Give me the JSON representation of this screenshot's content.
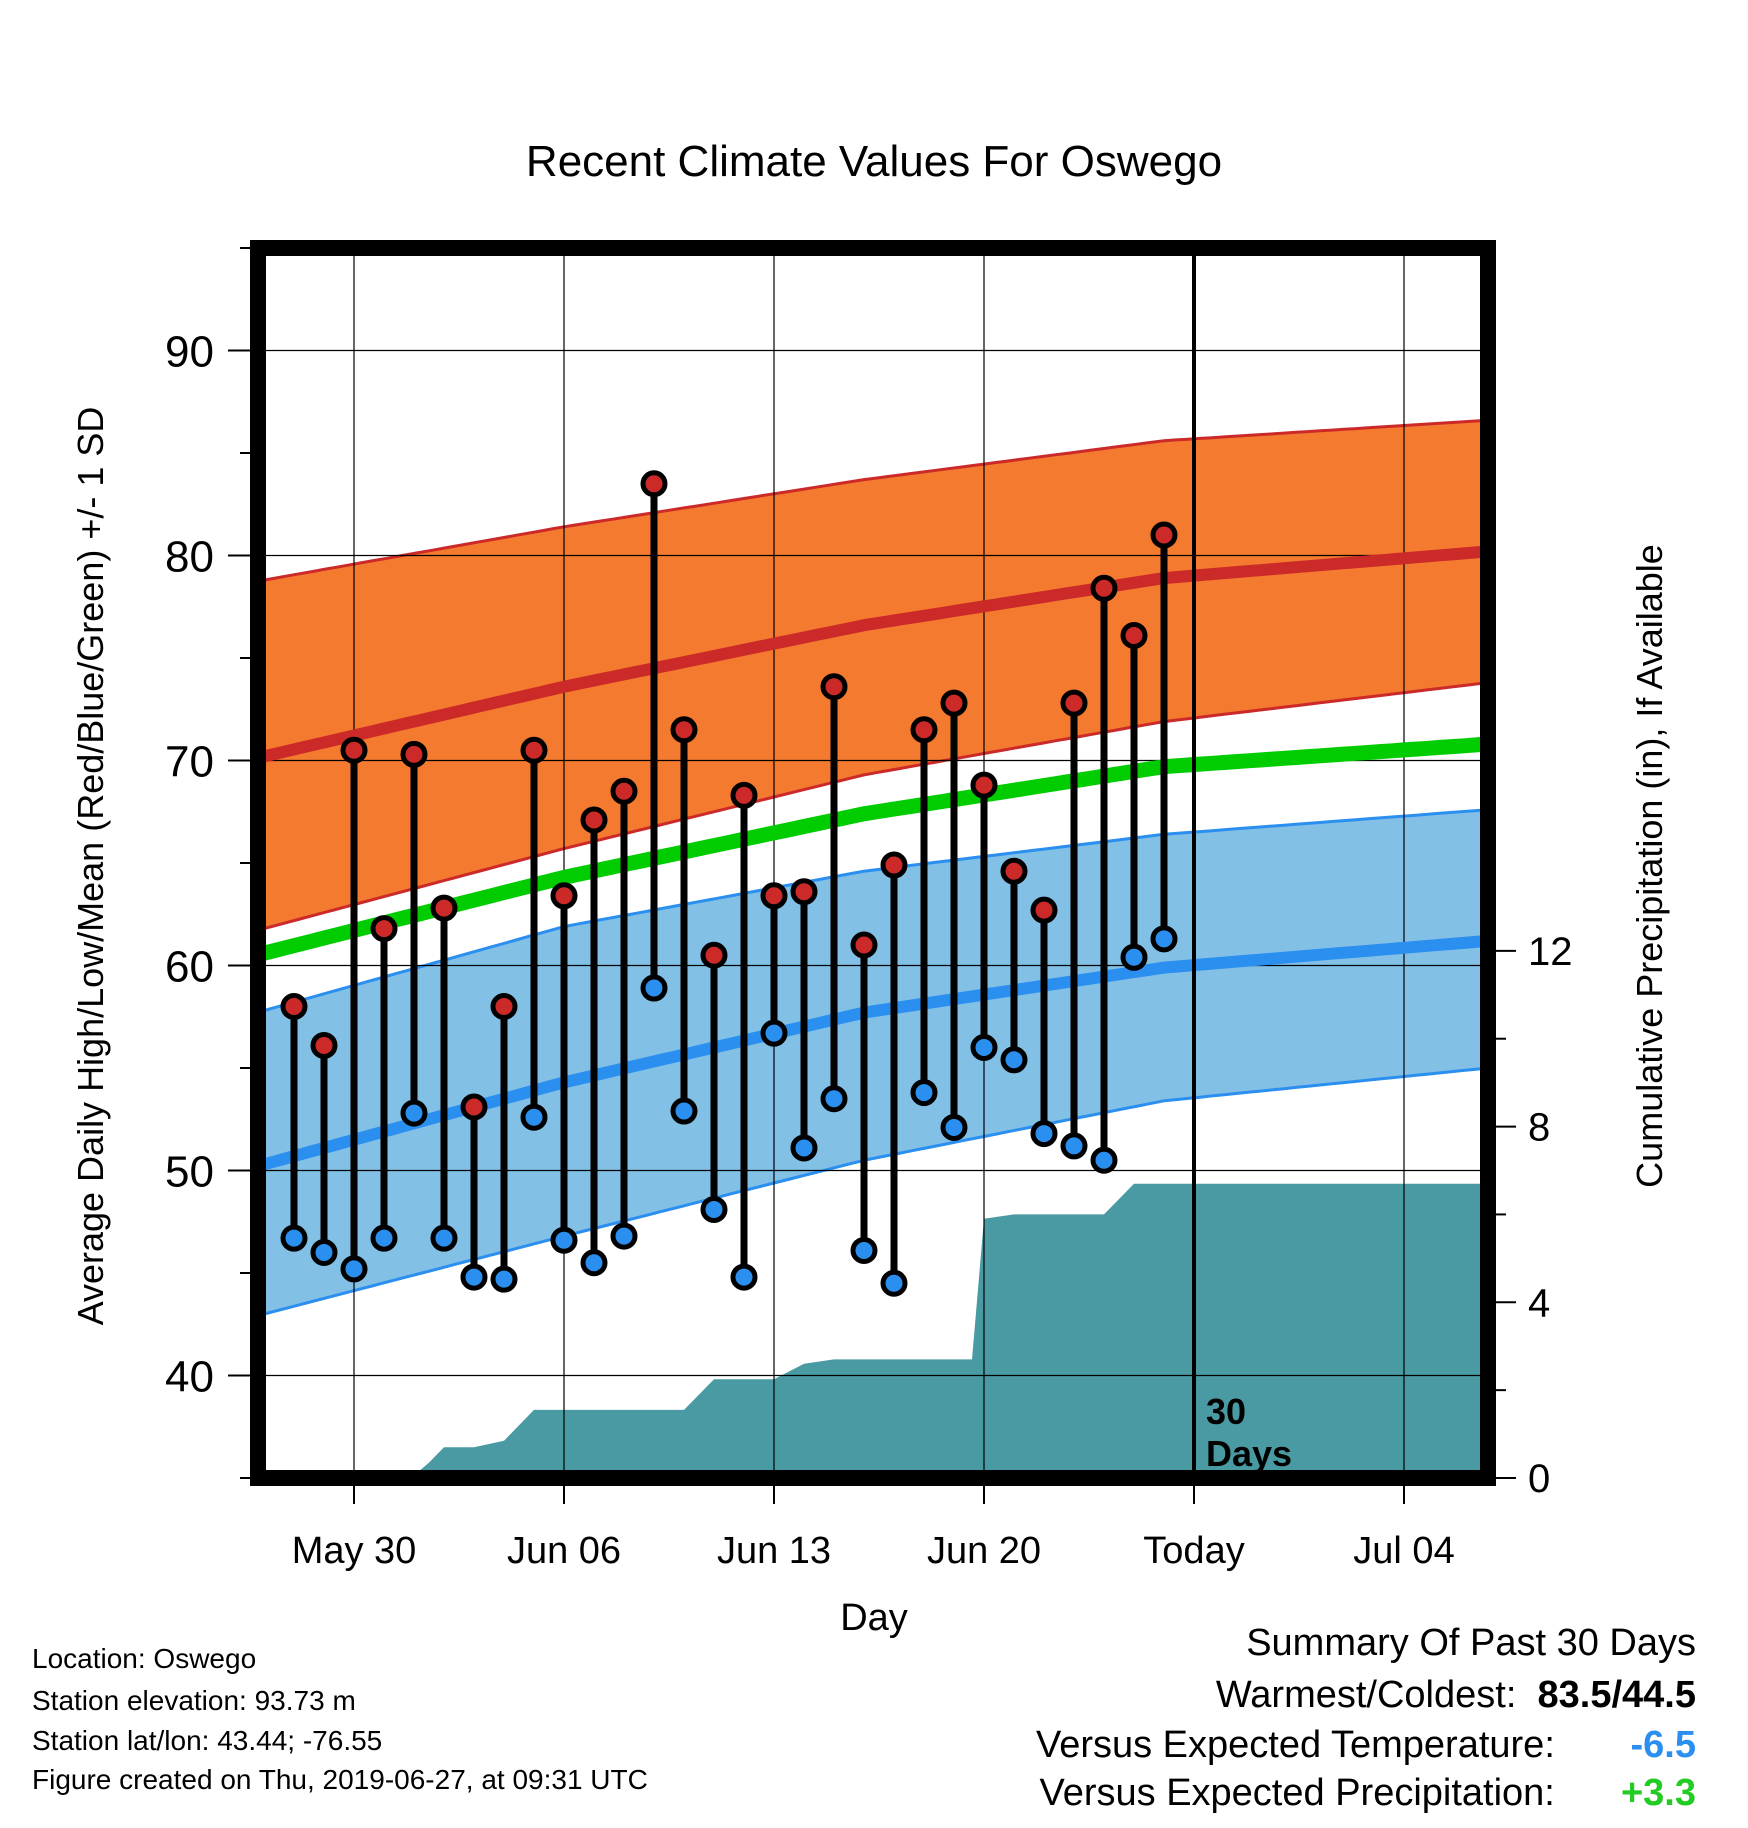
{
  "chart_data": {
    "type": "line",
    "title": "Recent Climate Values For Oswego",
    "xlabel": "Day",
    "ylabel": "Average Daily High/Low/Mean (Red/Blue/Green) +/- 1 SD",
    "y2label": "Cumulative Precipitation (in), If Available",
    "x_tick_labels": [
      "May 30",
      "Jun 06",
      "Jun 13",
      "Jun 20",
      "Today",
      "Jul 04"
    ],
    "x_tick_days": [
      3,
      10,
      17,
      24,
      31,
      38
    ],
    "xlim_days": [
      -0.2,
      40.8
    ],
    "ylim": [
      35,
      95
    ],
    "y_ticks": [
      40,
      50,
      60,
      70,
      80,
      90
    ],
    "y2lim": [
      0,
      28
    ],
    "y2_ticks": [
      0,
      4,
      8,
      12
    ],
    "grid": true,
    "today_day": 31,
    "today_label_line1": "30",
    "today_label_line2": "Days",
    "colors": {
      "high_band": "#f47a2f",
      "high_line": "#cc2929",
      "low_band": "#82c0e6",
      "low_line": "#2b8ff0",
      "mean_line": "#00cc00",
      "precip": "#4a9aa3",
      "high_marker": "#cc2929",
      "low_marker": "#2b8ff0"
    },
    "normals": {
      "days": [
        0,
        10,
        20,
        30,
        40.8
      ],
      "high_mean": [
        70.2,
        73.6,
        76.6,
        78.9,
        80.2
      ],
      "high_upper": [
        78.8,
        81.4,
        83.7,
        85.6,
        86.6
      ],
      "high_lower": [
        61.8,
        65.7,
        69.3,
        71.9,
        73.8
      ],
      "mean": [
        60.6,
        64.3,
        67.4,
        69.7,
        70.8
      ],
      "low_mean": [
        50.3,
        54.3,
        57.7,
        59.9,
        61.2
      ],
      "low_upper": [
        57.8,
        61.9,
        64.6,
        66.4,
        67.6
      ],
      "low_lower": [
        43.0,
        46.8,
        50.5,
        53.4,
        55.0
      ]
    },
    "observed": {
      "days": [
        1,
        2,
        3,
        4,
        5,
        6,
        7,
        8,
        9,
        10,
        11,
        12,
        13,
        14,
        15,
        16,
        17,
        18,
        19,
        20,
        21,
        22,
        23,
        24,
        25,
        26,
        27,
        28,
        29,
        30
      ],
      "high": [
        58.0,
        56.1,
        70.5,
        61.8,
        70.3,
        62.8,
        53.1,
        58.0,
        70.5,
        63.4,
        67.1,
        68.5,
        83.5,
        71.5,
        60.5,
        68.3,
        63.4,
        63.6,
        73.6,
        61.0,
        64.9,
        71.5,
        72.8,
        68.8,
        64.6,
        62.7,
        72.8,
        78.4,
        76.1,
        81.0
      ],
      "low": [
        46.7,
        46.0,
        45.2,
        46.7,
        52.8,
        46.7,
        44.8,
        44.7,
        52.6,
        46.6,
        45.5,
        46.8,
        58.9,
        52.9,
        48.1,
        44.8,
        56.7,
        51.1,
        53.5,
        46.1,
        44.5,
        53.8,
        52.1,
        56.0,
        55.4,
        51.8,
        51.2,
        50.5,
        60.4,
        61.3
      ]
    },
    "precip_cumulative": {
      "days": [
        0.6,
        5.0,
        5.5,
        6.0,
        7.0,
        8.0,
        9.0,
        10.0,
        11.0,
        12.0,
        13.0,
        14.0,
        15.0,
        16.0,
        17.0,
        18.0,
        19.0,
        20.0,
        21.0,
        22.0,
        23.0,
        23.6,
        24.0,
        25.0,
        26.0,
        27.0,
        28.0,
        29.0,
        30.0,
        31.0,
        40.8
      ],
      "values": [
        0.06,
        0.06,
        0.35,
        0.7,
        0.7,
        0.85,
        1.55,
        1.55,
        1.55,
        1.55,
        1.55,
        1.55,
        2.25,
        2.25,
        2.25,
        2.6,
        2.7,
        2.7,
        2.7,
        2.7,
        2.7,
        2.7,
        5.9,
        6.0,
        6.0,
        6.0,
        6.0,
        6.7,
        6.7,
        6.7,
        6.7
      ]
    }
  },
  "info": {
    "location": "Location: Oswego",
    "elevation": "Station elevation: 93.73 m",
    "latlon": "Station lat/lon: 43.44; -76.55",
    "created": "Figure created on Thu, 2019-06-27, at 09:31 UTC"
  },
  "summary": {
    "heading": "Summary Of Past 30 Days",
    "warmest_label": "Warmest/Coldest:",
    "warmest_value": "83.5/44.5",
    "temp_label": "Versus Expected Temperature:",
    "temp_value": "-6.5",
    "temp_color": "#2b8ff0",
    "precip_label": "Versus Expected Precipitation:",
    "precip_value": "+3.3",
    "precip_color": "#22cc22"
  }
}
